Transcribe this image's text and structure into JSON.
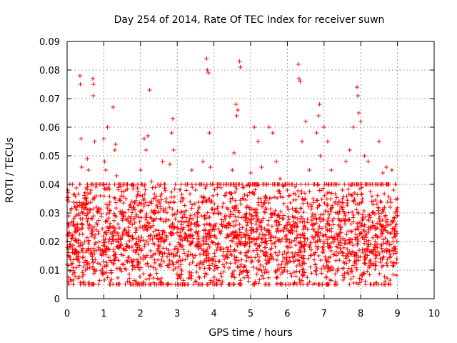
{
  "chart_data": {
    "type": "scatter",
    "title": "Day 254 of 2014, Rate Of TEC Index for receiver suwn",
    "xlabel": "GPS time / hours",
    "ylabel": "ROTI / TECUs",
    "xlim": [
      0,
      10
    ],
    "ylim": [
      0,
      0.09
    ],
    "x_ticks": [
      0,
      1,
      2,
      3,
      4,
      5,
      6,
      7,
      8,
      9,
      10
    ],
    "x_tick_labels": [
      "0",
      "1",
      "2",
      "3",
      "4",
      "5",
      "6",
      "7",
      "8",
      "9",
      "10"
    ],
    "y_ticks": [
      0,
      0.01,
      0.02,
      0.03,
      0.04,
      0.05,
      0.06,
      0.07,
      0.08,
      0.09
    ],
    "y_tick_labels": [
      "0",
      "0.01",
      "0.02",
      "0.03",
      "0.04",
      "0.05",
      "0.06",
      "0.07",
      "0.08",
      "0.09"
    ],
    "grid": true,
    "marker": "+",
    "color": "#ff0000",
    "series": [
      {
        "name": "ROTI",
        "points": [
          [
            0.02,
            0.038
          ],
          [
            0.03,
            0.006
          ],
          [
            0.05,
            0.026
          ],
          [
            0.08,
            0.018
          ],
          [
            0.1,
            0.031
          ],
          [
            0.12,
            0.012
          ],
          [
            0.15,
            0.022
          ],
          [
            0.18,
            0.028
          ],
          [
            0.2,
            0.016
          ],
          [
            0.25,
            0.024
          ],
          [
            0.3,
            0.014
          ],
          [
            0.35,
            0.078
          ],
          [
            0.36,
            0.075
          ],
          [
            0.38,
            0.056
          ],
          [
            0.4,
            0.046
          ],
          [
            0.42,
            0.03
          ],
          [
            0.45,
            0.006
          ],
          [
            0.48,
            0.02
          ],
          [
            0.5,
            0.035
          ],
          [
            0.55,
            0.049
          ],
          [
            0.58,
            0.045
          ],
          [
            0.6,
            0.025
          ],
          [
            0.65,
            0.038
          ],
          [
            0.7,
            0.077
          ],
          [
            0.71,
            0.071
          ],
          [
            0.72,
            0.075
          ],
          [
            0.75,
            0.055
          ],
          [
            0.8,
            0.032
          ],
          [
            0.85,
            0.018
          ],
          [
            0.9,
            0.012
          ],
          [
            0.95,
            0.04
          ],
          [
            1.0,
            0.056
          ],
          [
            1.02,
            0.048
          ],
          [
            1.05,
            0.045
          ],
          [
            1.1,
            0.06
          ],
          [
            1.15,
            0.03
          ],
          [
            1.2,
            0.009
          ],
          [
            1.25,
            0.067
          ],
          [
            1.3,
            0.052
          ],
          [
            1.32,
            0.054
          ],
          [
            1.35,
            0.043
          ],
          [
            1.4,
            0.022
          ],
          [
            1.5,
            0.028
          ],
          [
            1.6,
            0.035
          ],
          [
            1.7,
            0.018
          ],
          [
            1.8,
            0.032
          ],
          [
            1.9,
            0.024
          ],
          [
            2.0,
            0.045
          ],
          [
            2.05,
            0.036
          ],
          [
            2.1,
            0.056
          ],
          [
            2.15,
            0.052
          ],
          [
            2.2,
            0.057
          ],
          [
            2.25,
            0.073
          ],
          [
            2.3,
            0.041
          ],
          [
            2.4,
            0.03
          ],
          [
            2.5,
            0.02
          ],
          [
            2.6,
            0.048
          ],
          [
            2.7,
            0.035
          ],
          [
            2.8,
            0.047
          ],
          [
            2.85,
            0.058
          ],
          [
            2.88,
            0.063
          ],
          [
            2.9,
            0.052
          ],
          [
            2.95,
            0.04
          ],
          [
            3.0,
            0.025
          ],
          [
            3.1,
            0.012
          ],
          [
            3.2,
            0.005
          ],
          [
            3.3,
            0.022
          ],
          [
            3.4,
            0.045
          ],
          [
            3.5,
            0.038
          ],
          [
            3.6,
            0.032
          ],
          [
            3.7,
            0.048
          ],
          [
            3.75,
            0.028
          ],
          [
            3.8,
            0.084
          ],
          [
            3.82,
            0.08
          ],
          [
            3.85,
            0.079
          ],
          [
            3.88,
            0.058
          ],
          [
            3.9,
            0.046
          ],
          [
            4.0,
            0.03
          ],
          [
            4.1,
            0.018
          ],
          [
            4.2,
            0.026
          ],
          [
            4.3,
            0.036
          ],
          [
            4.4,
            0.022
          ],
          [
            4.5,
            0.045
          ],
          [
            4.55,
            0.051
          ],
          [
            4.6,
            0.068
          ],
          [
            4.62,
            0.064
          ],
          [
            4.65,
            0.066
          ],
          [
            4.7,
            0.083
          ],
          [
            4.72,
            0.081
          ],
          [
            4.75,
            0.009
          ],
          [
            4.8,
            0.035
          ],
          [
            4.9,
            0.028
          ],
          [
            5.0,
            0.044
          ],
          [
            5.1,
            0.06
          ],
          [
            5.2,
            0.055
          ],
          [
            5.3,
            0.046
          ],
          [
            5.4,
            0.036
          ],
          [
            5.5,
            0.06
          ],
          [
            5.6,
            0.058
          ],
          [
            5.7,
            0.048
          ],
          [
            5.8,
            0.042
          ],
          [
            5.9,
            0.028
          ],
          [
            6.0,
            0.038
          ],
          [
            6.1,
            0.018
          ],
          [
            6.2,
            0.025
          ],
          [
            6.3,
            0.082
          ],
          [
            6.32,
            0.077
          ],
          [
            6.35,
            0.076
          ],
          [
            6.4,
            0.055
          ],
          [
            6.5,
            0.062
          ],
          [
            6.6,
            0.045
          ],
          [
            6.7,
            0.035
          ],
          [
            6.8,
            0.058
          ],
          [
            6.85,
            0.064
          ],
          [
            6.88,
            0.068
          ],
          [
            6.9,
            0.05
          ],
          [
            7.0,
            0.06
          ],
          [
            7.1,
            0.055
          ],
          [
            7.2,
            0.045
          ],
          [
            7.3,
            0.034
          ],
          [
            7.4,
            0.028
          ],
          [
            7.5,
            0.038
          ],
          [
            7.6,
            0.048
          ],
          [
            7.7,
            0.052
          ],
          [
            7.8,
            0.06
          ],
          [
            7.9,
            0.074
          ],
          [
            7.92,
            0.071
          ],
          [
            7.95,
            0.065
          ],
          [
            8.0,
            0.062
          ],
          [
            8.1,
            0.05
          ],
          [
            8.2,
            0.048
          ],
          [
            8.3,
            0.034
          ],
          [
            8.4,
            0.04
          ],
          [
            8.5,
            0.055
          ],
          [
            8.6,
            0.044
          ],
          [
            8.7,
            0.046
          ],
          [
            8.8,
            0.032
          ],
          [
            8.85,
            0.045
          ],
          [
            8.9,
            0.038
          ],
          [
            8.95,
            0.03
          ],
          [
            9.0,
            0.035
          ]
        ]
      }
    ],
    "background_band": {
      "x_range": [
        0,
        9
      ],
      "y_low": 0.005,
      "y_center": 0.02,
      "y_high": 0.04,
      "description_note": "dense band of points"
    }
  }
}
